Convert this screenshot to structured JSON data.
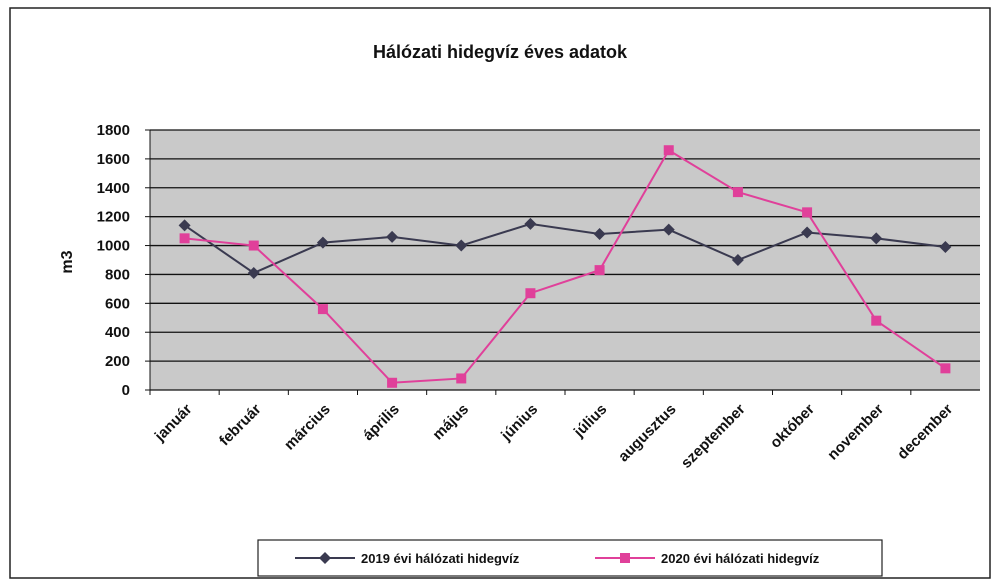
{
  "chart_data": {
    "type": "line",
    "title": "Hálózati hidegvíz éves adatok",
    "y_label": "m3",
    "categories": [
      "január",
      "február",
      "március",
      "április",
      "május",
      "június",
      "július",
      "augusztus",
      "szeptember",
      "október",
      "november",
      "december"
    ],
    "series": [
      {
        "name": "2019 évi hálózati hidegvíz",
        "color": "#3a3a50",
        "marker": "diamond",
        "values": [
          1140,
          810,
          1020,
          1060,
          1000,
          1150,
          1080,
          1110,
          900,
          1090,
          1050,
          990
        ]
      },
      {
        "name": "2020 évi hálózati hidegvíz",
        "color": "#e0409a",
        "marker": "square",
        "values": [
          1050,
          1000,
          560,
          50,
          80,
          670,
          830,
          1660,
          1370,
          1230,
          480,
          150
        ]
      }
    ],
    "ylim": [
      0,
      1800
    ],
    "yticks": [
      0,
      200,
      400,
      600,
      800,
      1000,
      1200,
      1400,
      1600,
      1800
    ],
    "grid": true,
    "legend": "bottom"
  }
}
